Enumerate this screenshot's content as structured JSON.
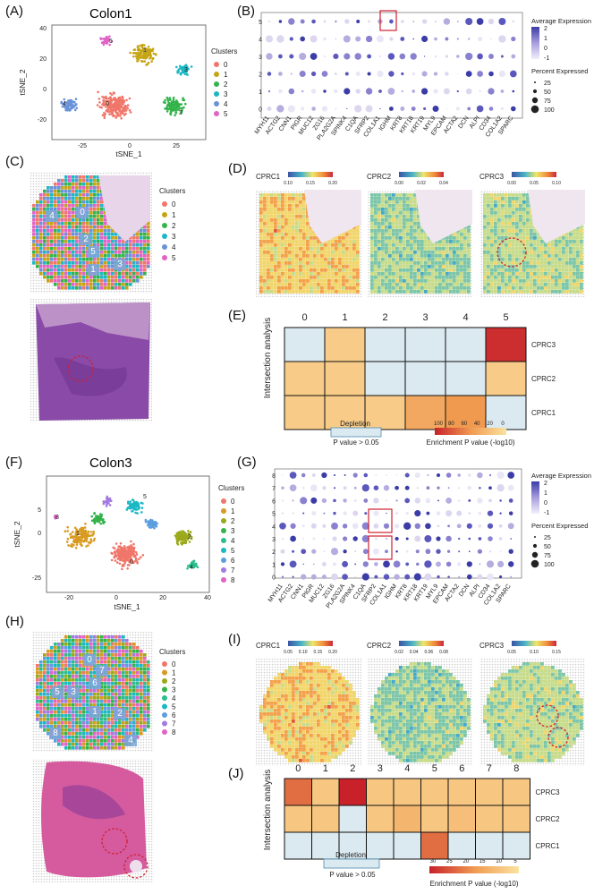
{
  "panel_labels": [
    "(A)",
    "(B)",
    "(C)",
    "(D)",
    "(E)",
    "(F)",
    "(G)",
    "(H)",
    "(I)",
    "(J)"
  ],
  "colon1": {
    "title": "Colon1",
    "legend_title": "Clusters",
    "clusters": [
      "0",
      "1",
      "2",
      "3",
      "4",
      "5"
    ],
    "colors": [
      "#f0766a",
      "#c5a414",
      "#33b34a",
      "#1bb8c4",
      "#6a92d8",
      "#e063c6"
    ],
    "xlabel": "tSNE_1",
    "ylabel": "tSNE_2",
    "xticks": [
      "-25",
      "0",
      "25"
    ],
    "yticks": [
      "40",
      "20",
      "0",
      "-20"
    ]
  },
  "colon3": {
    "title": "Colon3",
    "legend_title": "Clusters",
    "clusters": [
      "0",
      "1",
      "2",
      "3",
      "4",
      "5",
      "6",
      "7",
      "8"
    ],
    "colors": [
      "#f0766a",
      "#d89a20",
      "#9aa81a",
      "#33b34a",
      "#2bbd8a",
      "#1bb8c4",
      "#5a9ee0",
      "#a27ae0",
      "#e063c6"
    ],
    "xlabel": "tSNE_1",
    "ylabel": "tSNE_2",
    "xticks": [
      "-20",
      "0",
      "20",
      "40"
    ],
    "yticks": [
      "5",
      "0",
      "-25"
    ]
  },
  "dotplot": {
    "genes": [
      "MYH11",
      "ACTG2",
      "CNN1",
      "PIGR",
      "MUC12",
      "ZG16",
      "PLA2G2A",
      "SPINK4",
      "C1QA",
      "SFRP2",
      "COL1A1",
      "IGHM",
      "KRT8",
      "KRT18",
      "KRT19",
      "MYL9",
      "EPCAM",
      "ACTA2",
      "DCN",
      "ALPI",
      "CD34",
      "COL1A2",
      "SPARC"
    ],
    "avg_expr_title": "Average Expression",
    "avg_expr_ticks": [
      "2",
      "1",
      "0",
      "-1"
    ],
    "pct_title": "Percent Expressed",
    "pct_ticks": [
      "25",
      "50",
      "75",
      "100"
    ],
    "colon1_rows": [
      "5",
      "4",
      "3",
      "2",
      "1",
      "0"
    ],
    "colon3_rows": [
      "8",
      "7",
      "6",
      "5",
      "4",
      "3",
      "2",
      "1",
      "0"
    ]
  },
  "heatmap_d": {
    "labels": [
      "CPRC1",
      "CPRC2",
      "CPRC3"
    ],
    "scales": [
      [
        "0.10",
        "0.15",
        "0.20"
      ],
      [
        "0.00",
        "0.02",
        "0.04"
      ],
      [
        "0.00",
        "0.05",
        "0.10"
      ]
    ]
  },
  "heatmap_i": {
    "labels": [
      "CPRC1",
      "CPRC2",
      "CPRC3"
    ],
    "scales": [
      [
        "0.05",
        "0.10",
        "0.15",
        "0.20"
      ],
      [
        "0.02",
        "0.04",
        "0.06",
        "0.08"
      ],
      [
        "0.05",
        "0.10",
        "0.15"
      ]
    ]
  },
  "intersection_e": {
    "ylabel": "Intersection analysis",
    "cols": [
      "0",
      "1",
      "2",
      "3",
      "4",
      "5"
    ],
    "rows": [
      "CPRC3",
      "CPRC2",
      "CPRC1"
    ],
    "depletion_label": "Depletion",
    "pvalue_label": "P value > 0.05",
    "enrichment_label": "Enrichment P value (-log10)",
    "enrich_ticks": [
      "100",
      "80",
      "60",
      "40",
      "20",
      "0"
    ]
  },
  "intersection_j": {
    "ylabel": "Intersection analysis",
    "cols": [
      "0",
      "1",
      "2",
      "3",
      "4",
      "5",
      "6",
      "7",
      "8"
    ],
    "rows": [
      "CPRC3",
      "CPRC2",
      "CPRC1"
    ],
    "depletion_label": "Depletion",
    "pvalue_label": "P value > 0.05",
    "enrichment_label": "Enrichment P value (-log10)",
    "enrich_ticks": [
      "30",
      "25",
      "20",
      "15",
      "10",
      "5"
    ]
  },
  "chart_data": [
    {
      "type": "heatmap",
      "title": "",
      "x": [
        "0",
        "1",
        "2",
        "3",
        "4",
        "5"
      ],
      "y": [
        "CPRC3",
        "CPRC2",
        "CPRC1"
      ],
      "values": [
        [
          0,
          15,
          0,
          0,
          0,
          95
        ],
        [
          15,
          15,
          0,
          0,
          0,
          15
        ],
        [
          15,
          15,
          15,
          40,
          50,
          0
        ]
      ],
      "note_values": "-log10 P, 0 = depletion"
    },
    {
      "type": "heatmap",
      "title": "",
      "x": [
        "0",
        "1",
        "2",
        "3",
        "4",
        "5",
        "6",
        "7",
        "8"
      ],
      "y": [
        "CPRC3",
        "CPRC2",
        "CPRC1"
      ],
      "values": [
        [
          22,
          6,
          32,
          6,
          6,
          6,
          6,
          6,
          6
        ],
        [
          6,
          6,
          0,
          6,
          10,
          6,
          8,
          6,
          6
        ],
        [
          0,
          0,
          0,
          0,
          0,
          22,
          0,
          0,
          0
        ]
      ]
    }
  ]
}
